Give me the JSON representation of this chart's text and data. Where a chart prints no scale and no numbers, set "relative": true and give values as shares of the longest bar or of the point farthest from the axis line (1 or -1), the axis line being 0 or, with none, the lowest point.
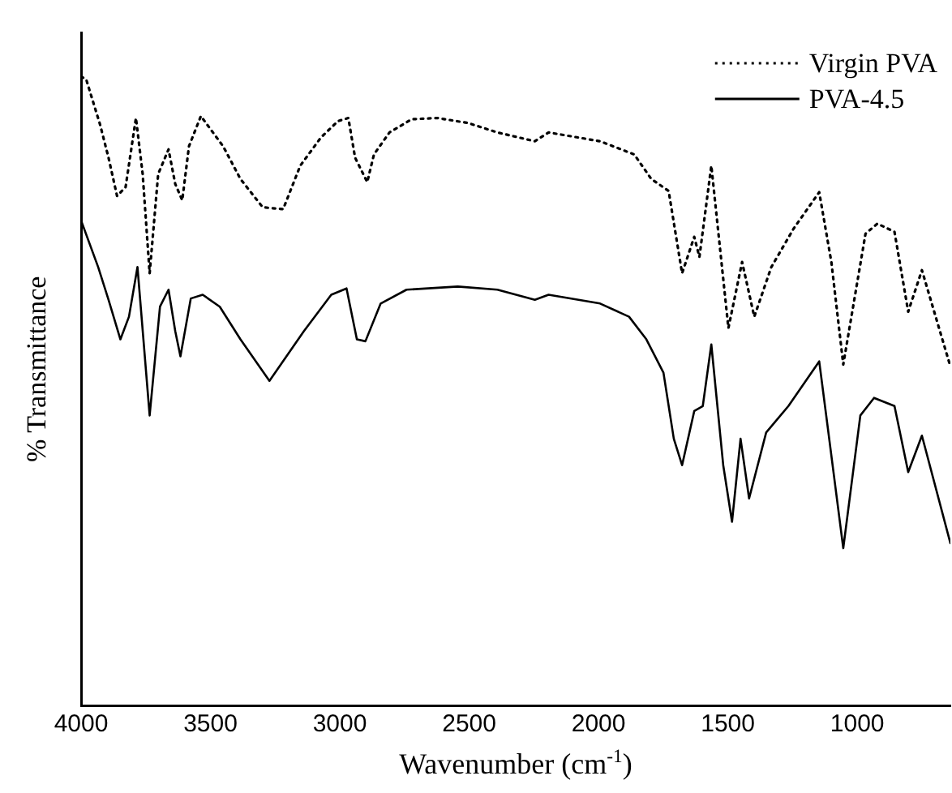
{
  "chart_data": {
    "type": "line",
    "xlabel": "Wavenumber (cm$^{-1}$)",
    "ylabel": "% Transmittance",
    "relative": true,
    "xlim": [
      4000,
      640
    ],
    "xticks": [
      4000,
      3500,
      3000,
      2500,
      2000,
      1500,
      1000
    ],
    "grid": false,
    "legend": "top right",
    "marker": "none",
    "series": [
      {
        "name": "Virgin PVA",
        "color": "#000000",
        "line_style": "dotted",
        "x": [
          4000,
          3980,
          3927,
          3894,
          3861,
          3828,
          3788,
          3762,
          3735,
          3702,
          3662,
          3636,
          3609,
          3583,
          3537,
          3451,
          3384,
          3298,
          3219,
          3153,
          3073,
          3007,
          2967,
          2941,
          2894,
          2868,
          2808,
          2722,
          2623,
          2504,
          2391,
          2246,
          2193,
          1994,
          1862,
          1796,
          1729,
          1677,
          1630,
          1610,
          1564,
          1498,
          1445,
          1398,
          1332,
          1246,
          1147,
          1100,
          1054,
          968,
          922,
          856,
          803,
          750,
          640
        ],
        "values": [
          1.0,
          0.995,
          0.924,
          0.871,
          0.81,
          0.824,
          0.934,
          0.845,
          0.687,
          0.845,
          0.884,
          0.829,
          0.803,
          0.889,
          0.937,
          0.889,
          0.837,
          0.792,
          0.789,
          0.858,
          0.903,
          0.929,
          0.934,
          0.871,
          0.832,
          0.876,
          0.911,
          0.932,
          0.934,
          0.926,
          0.911,
          0.897,
          0.911,
          0.897,
          0.876,
          0.837,
          0.818,
          0.687,
          0.745,
          0.713,
          0.858,
          0.6,
          0.705,
          0.618,
          0.697,
          0.758,
          0.816,
          0.705,
          0.542,
          0.75,
          0.766,
          0.753,
          0.626,
          0.692,
          0.539
        ]
      },
      {
        "name": "PVA-4.5",
        "color": "#000000",
        "line_style": "solid",
        "x": [
          4000,
          3934,
          3894,
          3848,
          3815,
          3782,
          3735,
          3695,
          3662,
          3636,
          3616,
          3576,
          3530,
          3464,
          3384,
          3272,
          3139,
          3033,
          2974,
          2934,
          2901,
          2842,
          2742,
          2544,
          2391,
          2246,
          2193,
          1994,
          1882,
          1815,
          1749,
          1709,
          1677,
          1630,
          1597,
          1564,
          1518,
          1484,
          1451,
          1418,
          1352,
          1266,
          1147,
          1114,
          1054,
          988,
          935,
          856,
          803,
          750,
          640
        ],
        "values": [
          0.771,
          0.697,
          0.645,
          0.582,
          0.618,
          0.697,
          0.461,
          0.634,
          0.661,
          0.595,
          0.555,
          0.647,
          0.653,
          0.634,
          0.582,
          0.516,
          0.595,
          0.653,
          0.663,
          0.582,
          0.579,
          0.639,
          0.661,
          0.666,
          0.661,
          0.645,
          0.653,
          0.639,
          0.618,
          0.582,
          0.529,
          0.424,
          0.382,
          0.468,
          0.476,
          0.574,
          0.382,
          0.292,
          0.424,
          0.329,
          0.434,
          0.476,
          0.547,
          0.442,
          0.25,
          0.461,
          0.489,
          0.476,
          0.371,
          0.429,
          0.258
        ]
      }
    ]
  }
}
